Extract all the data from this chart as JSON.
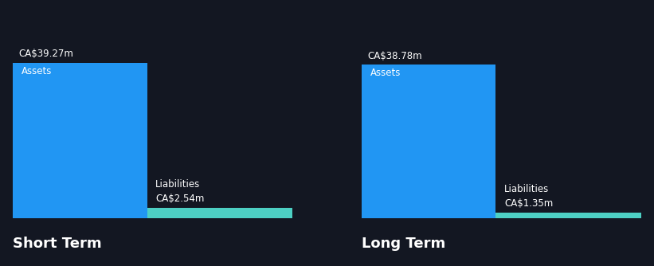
{
  "background_color": "#131722",
  "text_color": "#ffffff",
  "assets_color": "#2196f3",
  "liabilities_color": "#4dd0c4",
  "short_term": {
    "label": "Short Term",
    "assets_value": 39.27,
    "assets_label": "Assets",
    "assets_value_label": "CA$39.27m",
    "liabilities_value": 2.54,
    "liabilities_label": "Liabilities",
    "liabilities_value_label": "CA$2.54m"
  },
  "long_term": {
    "label": "Long Term",
    "assets_value": 38.78,
    "assets_label": "Assets",
    "assets_value_label": "CA$38.78m",
    "liabilities_value": 1.35,
    "liabilities_label": "Liabilities",
    "liabilities_value_label": "CA$1.35m"
  },
  "font_size_labels": 8.5,
  "font_size_values": 8.5,
  "font_size_title": 13
}
